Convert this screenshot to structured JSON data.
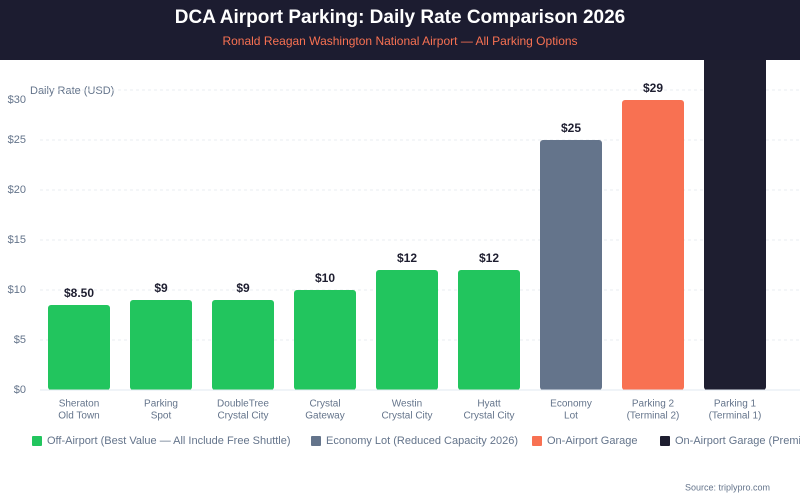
{
  "chart_data": {
    "type": "bar",
    "title": "DCA Airport Parking: Daily Rate Comparison 2026",
    "subtitle": "Ronald Reagan Washington National Airport — All Parking Options",
    "y_label": "Daily Rate (USD)",
    "source": "Source: triplypro.com",
    "categories": [
      [
        "Sheraton",
        "Old Town"
      ],
      [
        "Parking",
        "Spot"
      ],
      [
        "DoubleTree",
        "Crystal City"
      ],
      [
        "Crystal",
        "Gateway"
      ],
      [
        "Westin",
        "Crystal City"
      ],
      [
        "Hyatt",
        "Crystal City"
      ],
      [
        "Economy",
        "Lot"
      ],
      [
        "Parking 2",
        "(Terminal 2)"
      ],
      [
        "Parking 1",
        "(Terminal 1)"
      ]
    ],
    "values": [
      8.5,
      9,
      9,
      10,
      12,
      12,
      25,
      29,
      35
    ],
    "value_labels": [
      "$8.50",
      "$9",
      "$9",
      "$10",
      "$12",
      "$12",
      "$25",
      "$29",
      null
    ],
    "colors": [
      "#22c55e",
      "#22c55e",
      "#22c55e",
      "#22c55e",
      "#22c55e",
      "#22c55e",
      "#64748b",
      "#f87152",
      "#1e1e30"
    ],
    "legend": [
      {
        "name": "Off-Airport (Best Value — All Include Free Shuttle)",
        "color": "#22c55e"
      },
      {
        "name": "Economy Lot (Reduced Capacity 2026)",
        "color": "#64748b"
      },
      {
        "name": "On-Airport Garage",
        "color": "#f87152"
      },
      {
        "name": "On-Airport Garage (Premium)",
        "color": "#1e1e30"
      }
    ],
    "ylim": [
      0,
      33
    ],
    "yticks": [
      {
        "value": 0,
        "label": "$0"
      },
      {
        "value": 5,
        "label": "$5"
      },
      {
        "value": 10,
        "label": "$10"
      },
      {
        "value": 15,
        "label": "$15"
      },
      {
        "value": 20,
        "label": "$20"
      },
      {
        "value": 25,
        "label": "$25"
      },
      {
        "value": 30,
        "label": "$30"
      }
    ],
    "grid": true
  }
}
